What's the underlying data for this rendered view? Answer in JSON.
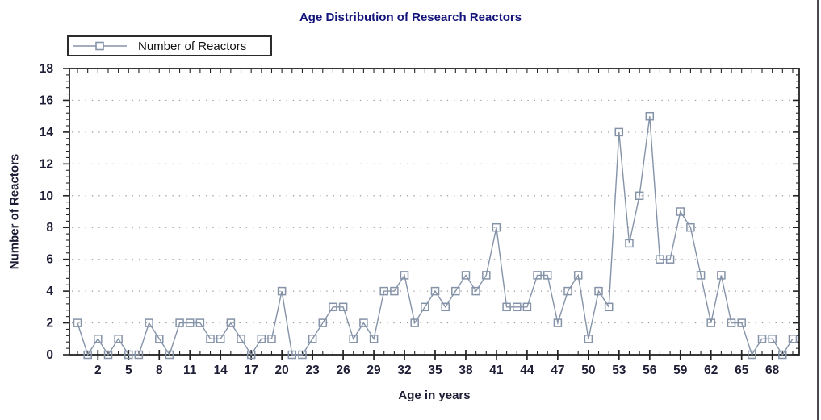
{
  "title": "Age Distribution of Research Reactors",
  "legend": {
    "label": "Number of Reactors",
    "position": "top-left"
  },
  "axes": {
    "xlabel": "Age in years",
    "ylabel": "Number of Reactors",
    "x_tick_labels": [
      2,
      5,
      8,
      11,
      14,
      17,
      20,
      23,
      26,
      29,
      32,
      35,
      38,
      41,
      44,
      47,
      50,
      53,
      56,
      59,
      62,
      65,
      68
    ],
    "y_tick_labels": [
      0,
      2,
      4,
      6,
      8,
      10,
      12,
      14,
      16,
      18
    ]
  },
  "colors": {
    "series": "#8593a8",
    "title_text": "#14147a",
    "tick_text": "#1d1d35",
    "axis": "#222222",
    "gridline": "#9a9a9a",
    "legend_text": "#111111"
  },
  "chart_data": {
    "type": "line",
    "title": "Age Distribution of Research Reactors",
    "xlabel": "Age in years",
    "ylabel": "Number of Reactors",
    "series": [
      {
        "name": "Number of Reactors",
        "marker": "hollow-square",
        "x": [
          0,
          1,
          2,
          3,
          4,
          5,
          6,
          7,
          8,
          9,
          10,
          11,
          12,
          13,
          14,
          15,
          16,
          17,
          18,
          19,
          20,
          21,
          22,
          23,
          24,
          25,
          26,
          27,
          28,
          29,
          30,
          31,
          32,
          33,
          34,
          35,
          36,
          37,
          38,
          39,
          40,
          41,
          42,
          43,
          44,
          45,
          46,
          47,
          48,
          49,
          50,
          51,
          52,
          53,
          54,
          55,
          56,
          57,
          58,
          59,
          60,
          61,
          62,
          63,
          64,
          65,
          66,
          67,
          68,
          69,
          70
        ],
        "values": [
          2,
          0,
          1,
          0,
          1,
          0,
          0,
          2,
          1,
          0,
          2,
          2,
          2,
          1,
          1,
          2,
          1,
          0,
          1,
          1,
          4,
          0,
          0,
          1,
          2,
          3,
          3,
          1,
          2,
          1,
          4,
          4,
          5,
          2,
          3,
          4,
          3,
          4,
          5,
          4,
          5,
          8,
          3,
          3,
          3,
          5,
          5,
          2,
          4,
          5,
          1,
          4,
          3,
          14,
          7,
          10,
          15,
          6,
          6,
          9,
          8,
          5,
          2,
          5,
          2,
          2,
          0,
          1,
          1,
          0,
          1
        ]
      }
    ],
    "xlim": [
      -0.8,
      70.7
    ],
    "ylim": [
      0,
      18
    ],
    "grid": "horizontal-dotted-major",
    "legend_position": "top-left"
  }
}
